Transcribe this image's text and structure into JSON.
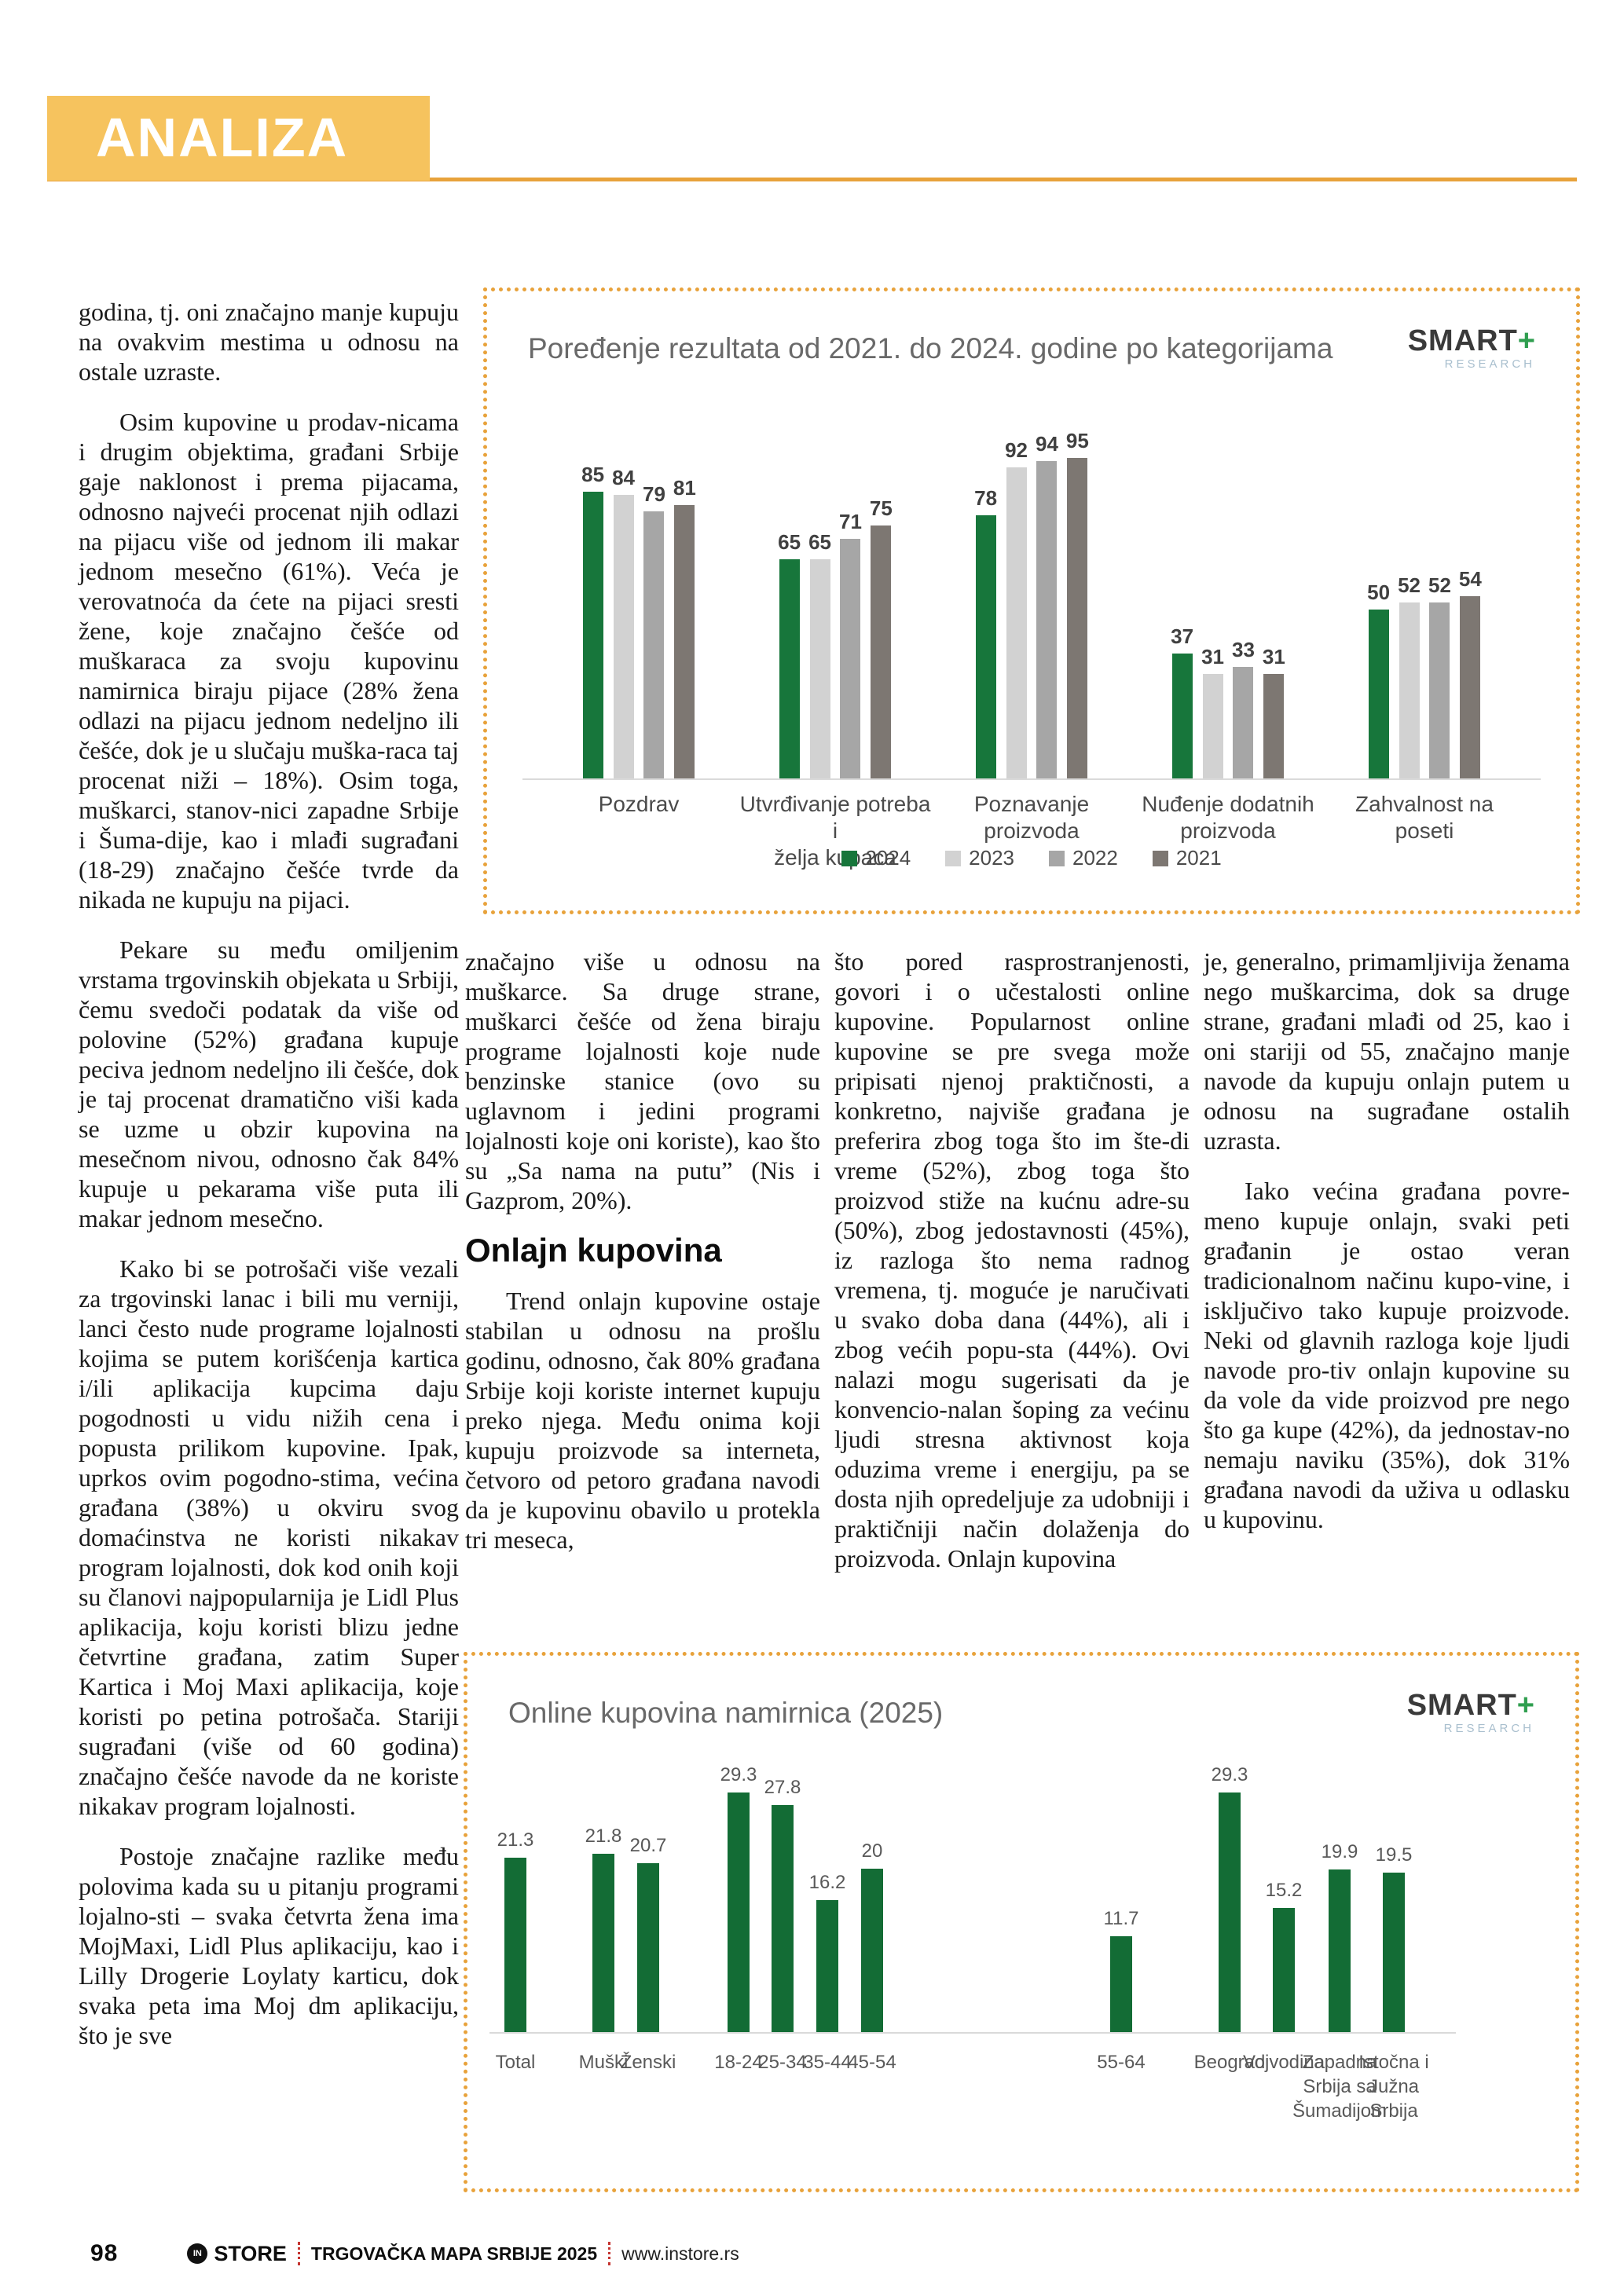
{
  "page": {
    "section_label": "ANALIZA",
    "footer": {
      "page_number": "98",
      "logo_circle": "IN",
      "logo_text": "STORE",
      "publication": "TRGOVAČKA MAPA SRBIJE 2025",
      "website": "www.instore.rs"
    }
  },
  "colors": {
    "header_band": "#f6c35e",
    "accent_rule_and_dots": "#e8a23b",
    "footer_divider": "#c53430",
    "chart1_green": "#17763b",
    "chart2_green": "#136c35"
  },
  "article": {
    "columns": [
      {
        "items": [
          {
            "type": "p",
            "indent": false,
            "text": "godina, tj. oni značajno manje kupuju na ovakvim mestima u odnosu na ostale uzraste."
          },
          {
            "type": "p",
            "indent": true,
            "text": "Osim kupovine u prodav-nicama i drugim objektima, građani Srbije gaje naklonost i prema pijacama, odnosno najveći procenat njih odlazi na pijacu više od jednom ili makar jednom mesečno (61%). Veća je verovatnoća da ćete na pijaci sresti žene, koje značajno češće od muškaraca za svoju kupovinu namirnica biraju pijace (28% žena odlazi na pijacu jednom nedeljno ili češće, dok je u slučaju muška-raca taj procenat niži – 18%). Osim toga, muškarci, stanov-nici zapadne Srbije i Šuma-dije, kao i mlađi sugrađani (18-29) značajno češće tvrde da nikada ne kupuju na pijaci."
          },
          {
            "type": "p",
            "indent": true,
            "text": "Pekare su među omiljenim vrstama trgovinskih objekata u Srbiji, čemu svedoči podatak da više od polovine (52%) građana kupuje peciva jednom nedeljno ili češće, dok je taj procenat dramatično viši kada se uzme u obzir kupovina na mesečnom nivou, odnosno čak 84% kupuje u pekarama više puta ili makar jednom mesečno."
          },
          {
            "type": "p",
            "indent": true,
            "text": "Kako bi se potrošači više vezali za trgovinski lanac i bili mu verniji, lanci često nude programe lojalnosti kojima se putem korišćenja kartica i/ili aplikacija kupcima daju pogodnosti u vidu nižih cena i popusta prilikom kupovine. Ipak, uprkos ovim pogodno-stima, većina građana (38%) u okviru svog domaćinstva ne koristi nikakav program lojalnosti, dok kod onih koji su članovi najpopularnija je Lidl Plus aplikacija, koju koristi blizu jedne četvrtine građana, zatim Super Kartica i Moj Maxi aplikacija, koje koristi po petina potrošača. Stariji sugrađani (više od 60 godina) značajno češće navode da ne koriste nikakav program lojalnosti."
          },
          {
            "type": "p",
            "indent": true,
            "text": "Postoje značajne razlike među polovima kada su u pitanju programi lojalno-sti – svaka četvrta žena ima MojMaxi, Lidl Plus aplikaciju, kao i Lilly Drogerie Loylaty karticu, dok svaka peta ima Moj dm aplikaciju, što je sve"
          }
        ]
      },
      {
        "items": [
          {
            "type": "p",
            "indent": false,
            "text": "značajno više u odnosu na muškarce. Sa druge strane, muškarci češće od žena biraju programe lojalnosti koje nude benzinske stanice (ovo su uglavnom i jedini programi lojalnosti koje oni koriste), kao što su „Sa nama na putu” (Nis i Gazprom, 20%)."
          },
          {
            "type": "heading",
            "text": "Onlajn kupovina"
          },
          {
            "type": "p",
            "indent": true,
            "text": "Trend onlajn kupovine ostaje stabilan u odnosu na prošlu godinu, odnosno, čak 80% građana Srbije koji koriste internet kupuju preko njega. Među onima koji kupuju proizvode sa interneta, četvoro od petoro građana navodi da je kupovinu obavilo u protekla tri meseca,"
          }
        ]
      },
      {
        "items": [
          {
            "type": "p",
            "indent": false,
            "text": "što pored rasprostranjenosti, govori i o učestalosti online kupovine. Popularnost online kupovine se pre svega može pripisati njenoj praktičnosti, a konkretno, najviše građana je preferira zbog toga što im šte-di vreme (52%), zbog toga što proizvod stiže na kućnu adre-su (50%), zbog jedostavnosti (45%), iz razloga što nema radnog vremena, tj. moguće je naručivati u svako doba dana (44%), ali i zbog većih popu-sta (44%). Ovi nalazi mogu sugerisati da je konvencio-nalan šoping za većinu ljudi stresna aktivnost koja oduzima vreme i energiju, pa se dosta njih opredeljuje za udobniji i praktičniji način dolaženja do proizvoda. Onlajn kupovina"
          }
        ]
      },
      {
        "items": [
          {
            "type": "p",
            "indent": false,
            "text": "je, generalno, primamljivija ženama nego muškarcima, dok sa druge strane, građani mlađi od 25, kao i oni stariji od 55, značajno manje navode da kupuju onlajn putem u odnosu na sugrađane ostalih uzrasta."
          },
          {
            "type": "p",
            "indent": true,
            "text": "Iako većina građana povre-meno kupuje onlajn, svaki peti građanin je ostao veran tradicionalnom načinu kupo-vine, i isključivo tako kupuje proizvode. Neki od glavnih razloga koje ljudi navode pro-tiv onlajn kupovine su da vole da vide proizvod pre nego što ga kupe (42%), da jednostav-no nemaju naviku (35%), dok 31% građana navodi da uživa u odlasku u kupovinu."
          }
        ]
      }
    ]
  },
  "chart_data": [
    {
      "type": "bar",
      "title": "Poređenje rezultata od 2021. do 2024. godine po kategorijama",
      "logo": {
        "brand": "SMART",
        "plus": "+",
        "sub": "RESEARCH"
      },
      "categories": [
        "Pozdrav",
        "Utvrđivanje potreba i\nželja kupaca",
        "Poznavanje proizvoda",
        "Nuđenje dodatnih\nproizvoda",
        "Zahvalnost na poseti"
      ],
      "series": [
        {
          "name": "2024",
          "color": "#17763b",
          "values": [
            85,
            65,
            78,
            37,
            50
          ]
        },
        {
          "name": "2023",
          "color": "#d2d2d2",
          "values": [
            84,
            65,
            92,
            31,
            52
          ]
        },
        {
          "name": "2022",
          "color": "#a6a6a6",
          "values": [
            79,
            71,
            94,
            33,
            52
          ]
        },
        {
          "name": "2021",
          "color": "#7d7772",
          "values": [
            81,
            75,
            95,
            31,
            54
          ]
        }
      ],
      "xlabel": "",
      "ylabel": "",
      "ylim": [
        0,
        100
      ],
      "grid": false,
      "legend_position": "bottom"
    },
    {
      "type": "bar",
      "title": "Online kupovina namirnica (2025)",
      "logo": {
        "brand": "SMART",
        "plus": "+",
        "sub": "RESEARCH"
      },
      "categories": [
        "Total",
        "Muški",
        "Ženski",
        "18-24",
        "25-34",
        "35-44",
        "45-54",
        "55-64",
        "Beograd",
        "Vojvodina",
        "Zapadna Srbija sa Šumadijom",
        "Istočna i Južna Srbija"
      ],
      "values": [
        21.3,
        21.8,
        20.7,
        29.3,
        27.8,
        16.2,
        20,
        11.7,
        29.3,
        15.2,
        19.9,
        19.5
      ],
      "bar_color": "#136c35",
      "xlabel": "",
      "ylabel": "",
      "ylim": [
        0,
        33
      ],
      "grid": false,
      "legend_position": "none"
    }
  ]
}
